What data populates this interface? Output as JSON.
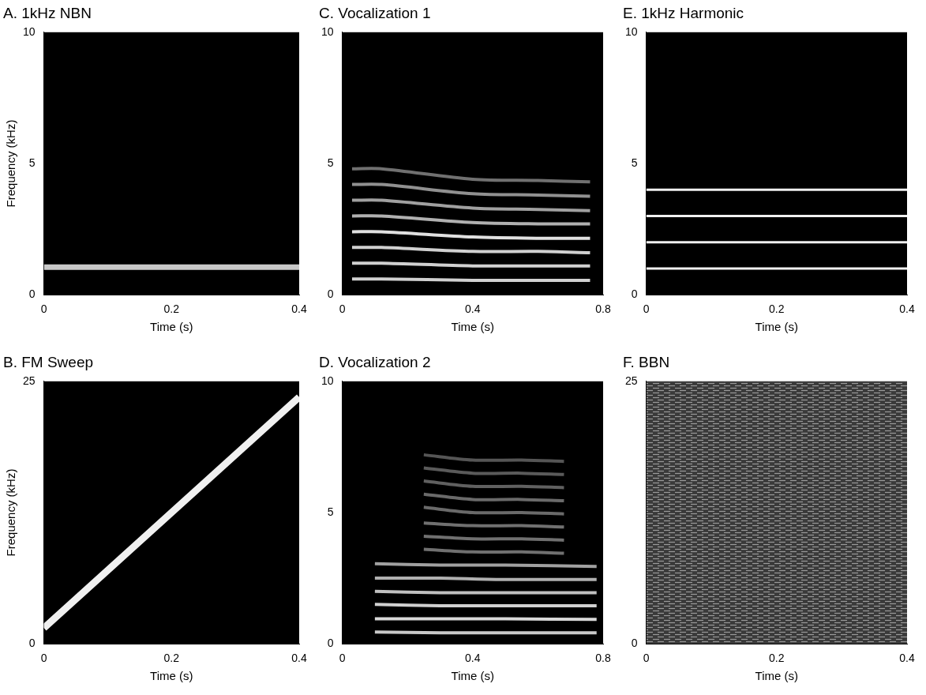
{
  "chart_data": [
    {
      "type": "spectrogram",
      "title": "A. 1kHz NBN",
      "x_label": "Time (s)",
      "y_label": "Frequency (kHz)",
      "xlim": [
        0,
        0.4
      ],
      "ylim": [
        0,
        10
      ],
      "xticks": [
        0,
        0.2,
        0.4
      ],
      "yticks": [
        0,
        5,
        10
      ],
      "tracks": [
        {
          "type": "noise",
          "color": "#c8c8c8",
          "x": [
            0,
            0.4
          ],
          "y": [
            1.05,
            1.05
          ]
        }
      ]
    },
    {
      "type": "spectrogram",
      "title": "B. FM Sweep",
      "x_label": "Time (s)",
      "y_label": "Frequency (kHz)",
      "xlim": [
        0,
        0.4
      ],
      "ylim": [
        0,
        25
      ],
      "xticks": [
        0,
        0.2,
        0.4
      ],
      "yticks": [
        0,
        25
      ],
      "tracks": [
        {
          "type": "sweep",
          "color": "#f0f0f0",
          "x": [
            0,
            0.4
          ],
          "y": [
            1.5,
            23.5
          ]
        }
      ]
    },
    {
      "type": "spectrogram",
      "title": "C. Vocalization 1",
      "x_label": "Time (s)",
      "xlim": [
        0,
        0.8
      ],
      "ylim": [
        0,
        10
      ],
      "xticks": [
        0,
        0.4,
        0.8
      ],
      "yticks": [
        0,
        5,
        10
      ],
      "tracks": [
        {
          "type": "vocal",
          "color": "#d0d0d0",
          "x": [
            0.03,
            0.12,
            0.4,
            0.6,
            0.76
          ],
          "y": [
            0.6,
            0.6,
            0.55,
            0.55,
            0.55
          ]
        },
        {
          "type": "vocal",
          "color": "#d0d0d0",
          "x": [
            0.03,
            0.12,
            0.4,
            0.6,
            0.76
          ],
          "y": [
            1.2,
            1.2,
            1.1,
            1.1,
            1.1
          ]
        },
        {
          "type": "vocal",
          "color": "#d0d0d0",
          "x": [
            0.03,
            0.12,
            0.4,
            0.6,
            0.76
          ],
          "y": [
            1.8,
            1.8,
            1.65,
            1.65,
            1.6
          ]
        },
        {
          "type": "vocal",
          "color": "#e0e0e0",
          "x": [
            0.03,
            0.12,
            0.4,
            0.6,
            0.76
          ],
          "y": [
            2.4,
            2.4,
            2.2,
            2.15,
            2.15
          ]
        },
        {
          "type": "vocal",
          "color": "#b0b0b0",
          "x": [
            0.03,
            0.12,
            0.4,
            0.6,
            0.76
          ],
          "y": [
            3.0,
            3.0,
            2.75,
            2.7,
            2.7
          ]
        },
        {
          "type": "vocal",
          "color": "#a0a0a0",
          "x": [
            0.03,
            0.12,
            0.4,
            0.6,
            0.76
          ],
          "y": [
            3.6,
            3.6,
            3.3,
            3.25,
            3.2
          ]
        },
        {
          "type": "vocal",
          "color": "#909090",
          "x": [
            0.03,
            0.12,
            0.4,
            0.6,
            0.76
          ],
          "y": [
            4.2,
            4.2,
            3.85,
            3.8,
            3.75
          ]
        },
        {
          "type": "vocal",
          "color": "#707070",
          "x": [
            0.03,
            0.12,
            0.4,
            0.6,
            0.76
          ],
          "y": [
            4.8,
            4.8,
            4.4,
            4.35,
            4.3
          ]
        }
      ]
    },
    {
      "type": "spectrogram",
      "title": "D. Vocalization 2",
      "x_label": "Time (s)",
      "xlim": [
        0,
        0.8
      ],
      "ylim": [
        0,
        10
      ],
      "xticks": [
        0,
        0.4,
        0.8
      ],
      "yticks": [
        0,
        5,
        10
      ],
      "tracks": [
        {
          "type": "vocal",
          "color": "#c8c8c8",
          "x": [
            0.1,
            0.3,
            0.5,
            0.78
          ],
          "y": [
            0.45,
            0.42,
            0.42,
            0.42
          ]
        },
        {
          "type": "vocal",
          "color": "#d8d8d8",
          "x": [
            0.1,
            0.3,
            0.5,
            0.78
          ],
          "y": [
            0.95,
            0.95,
            0.95,
            0.93
          ]
        },
        {
          "type": "vocal",
          "color": "#d0d0d0",
          "x": [
            0.1,
            0.3,
            0.5,
            0.78
          ],
          "y": [
            1.5,
            1.45,
            1.45,
            1.45
          ]
        },
        {
          "type": "vocal",
          "color": "#c0c0c0",
          "x": [
            0.1,
            0.3,
            0.5,
            0.78
          ],
          "y": [
            2.0,
            1.95,
            1.95,
            1.95
          ]
        },
        {
          "type": "vocal",
          "color": "#b0b0b0",
          "x": [
            0.1,
            0.3,
            0.5,
            0.78
          ],
          "y": [
            2.5,
            2.5,
            2.45,
            2.45
          ]
        },
        {
          "type": "vocal",
          "color": "#a0a0a0",
          "x": [
            0.1,
            0.3,
            0.5,
            0.78
          ],
          "y": [
            3.05,
            3.0,
            3.0,
            2.95
          ]
        },
        {
          "type": "vocal",
          "color": "#707070",
          "x": [
            0.25,
            0.4,
            0.55,
            0.68
          ],
          "y": [
            3.6,
            3.5,
            3.5,
            3.45
          ]
        },
        {
          "type": "vocal",
          "color": "#707070",
          "x": [
            0.25,
            0.4,
            0.55,
            0.68
          ],
          "y": [
            4.1,
            4.0,
            4.0,
            3.95
          ]
        },
        {
          "type": "vocal",
          "color": "#707070",
          "x": [
            0.25,
            0.4,
            0.55,
            0.68
          ],
          "y": [
            4.6,
            4.5,
            4.5,
            4.45
          ]
        },
        {
          "type": "vocal",
          "color": "#6a6a6a",
          "x": [
            0.25,
            0.4,
            0.55,
            0.68
          ],
          "y": [
            5.2,
            5.0,
            5.0,
            4.95
          ]
        },
        {
          "type": "vocal",
          "color": "#6a6a6a",
          "x": [
            0.25,
            0.4,
            0.55,
            0.68
          ],
          "y": [
            5.7,
            5.5,
            5.5,
            5.45
          ]
        },
        {
          "type": "vocal",
          "color": "#606060",
          "x": [
            0.25,
            0.4,
            0.55,
            0.68
          ],
          "y": [
            6.2,
            6.0,
            6.0,
            5.95
          ]
        },
        {
          "type": "vocal",
          "color": "#5a5a5a",
          "x": [
            0.25,
            0.4,
            0.55,
            0.68
          ],
          "y": [
            6.7,
            6.5,
            6.5,
            6.45
          ]
        },
        {
          "type": "vocal",
          "color": "#555555",
          "x": [
            0.25,
            0.4,
            0.55,
            0.68
          ],
          "y": [
            7.2,
            7.0,
            7.0,
            6.95
          ]
        }
      ]
    },
    {
      "type": "spectrogram",
      "title": "E. 1kHz Harmonic",
      "x_label": "Time (s)",
      "xlim": [
        0,
        0.4
      ],
      "ylim": [
        0,
        10
      ],
      "xticks": [
        0,
        0.2,
        0.4
      ],
      "yticks": [
        0,
        5,
        10
      ],
      "tracks": [
        {
          "type": "tone",
          "color": "#f0f0f0",
          "x": [
            0,
            0.4
          ],
          "y": [
            1,
            1
          ]
        },
        {
          "type": "tone",
          "color": "#f0f0f0",
          "x": [
            0,
            0.4
          ],
          "y": [
            2,
            2
          ]
        },
        {
          "type": "tone",
          "color": "#f0f0f0",
          "x": [
            0,
            0.4
          ],
          "y": [
            3,
            3
          ]
        },
        {
          "type": "tone",
          "color": "#f0f0f0",
          "x": [
            0,
            0.4
          ],
          "y": [
            4,
            4
          ]
        }
      ]
    },
    {
      "type": "spectrogram",
      "title": "F. BBN",
      "x_label": "Time (s)",
      "xlim": [
        0,
        0.4
      ],
      "ylim": [
        0,
        25
      ],
      "xticks": [
        0,
        0.2,
        0.4
      ],
      "yticks": [
        0,
        25
      ],
      "bands": [
        {
          "type": "noise",
          "color": "#9a9a9a",
          "x": [
            0,
            0.4
          ],
          "low": [
            0,
            0
          ],
          "high": [
            25,
            25
          ]
        }
      ]
    }
  ]
}
